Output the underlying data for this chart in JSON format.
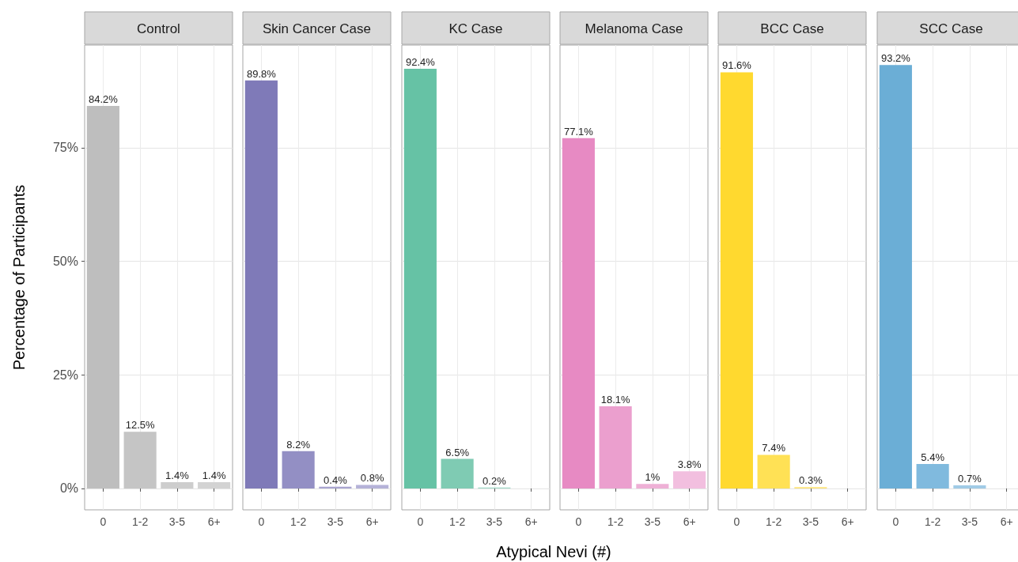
{
  "chart_data": [
    {
      "type": "bar",
      "title": "Control",
      "ylabel": "Percentage of Participants",
      "categories": [
        "0",
        "1-2",
        "3-5",
        "6+"
      ],
      "values": [
        84.2,
        12.5,
        1.4,
        1.4
      ],
      "colors": [
        "#bebebe",
        "#c5c5c5",
        "#cdcdcd",
        "#d3d3d3"
      ],
      "value_labels": [
        "84.2%",
        "12.5%",
        "1.4%",
        "1.4%"
      ],
      "ylim": [
        -4.7,
        97.6
      ],
      "yticks": [
        {
          "value": 0,
          "label": "0%"
        },
        {
          "value": 25,
          "label": "25%"
        },
        {
          "value": 50,
          "label": "50%"
        },
        {
          "value": 75,
          "label": "75%"
        }
      ],
      "grid": true
    },
    {
      "type": "bar",
      "title": "Skin Cancer Case",
      "categories": [
        "0",
        "1-2",
        "3-5",
        "6+"
      ],
      "values": [
        89.8,
        8.2,
        0.4,
        0.8
      ],
      "colors": [
        "#7f7ab8",
        "#938fc4",
        "#a9a5d0",
        "#b5b2d8"
      ],
      "value_labels": [
        "89.8%",
        "8.2%",
        "0.4%",
        "0.8%"
      ],
      "ylim": [
        -4.7,
        97.6
      ],
      "yticks": [
        0,
        25,
        50,
        75
      ],
      "grid": true,
      "tick_labels": "x"
    },
    {
      "type": "bar",
      "title": "KC Case",
      "xlabel": "Atypical Nevi (#)",
      "categories": [
        "0",
        "1-2",
        "3-5",
        "6+"
      ],
      "values": [
        92.4,
        6.5,
        0.2,
        null
      ],
      "colors": [
        "#66c2a5",
        "#7fcbb3",
        "#a3dac8",
        "#b8e3d5"
      ],
      "value_labels": [
        "92.4%",
        "6.5%",
        "0.2%",
        null
      ],
      "ylim": [
        -4.7,
        97.6
      ],
      "yticks": [
        0,
        25,
        50,
        75
      ],
      "grid": true,
      "tick_labels": "x"
    },
    {
      "type": "bar",
      "title": "Melanoma Case",
      "categories": [
        "0",
        "1-2",
        "3-5",
        "6+"
      ],
      "values": [
        77.1,
        18.1,
        1,
        3.8
      ],
      "colors": [
        "#e78ac3",
        "#eb9fce",
        "#eeb0d6",
        "#f2bfdf"
      ],
      "value_labels": [
        "77.1%",
        "18.1%",
        "1%",
        "3.8%"
      ],
      "ylim": [
        -4.7,
        97.6
      ],
      "yticks": [
        0,
        25,
        50,
        75
      ],
      "grid": true,
      "tick_labels": "x"
    },
    {
      "type": "bar",
      "title": "BCC Case",
      "categories": [
        "0",
        "1-2",
        "3-5",
        "6+"
      ],
      "values": [
        91.6,
        7.4,
        0.3,
        null
      ],
      "colors": [
        "#ffd92f",
        "#ffe155",
        "#ffe57a",
        "#ffeb9a"
      ],
      "value_labels": [
        "91.6%",
        "7.4%",
        "0.3%",
        null
      ],
      "ylim": [
        -4.7,
        97.6
      ],
      "yticks": [
        0,
        25,
        50,
        75
      ],
      "grid": true,
      "tick_labels": "x"
    },
    {
      "type": "bar",
      "title": "SCC Case",
      "categories": [
        "0",
        "1-2",
        "3-5",
        "6+"
      ],
      "values": [
        93.2,
        5.4,
        0.7,
        null
      ],
      "colors": [
        "#6baed6",
        "#80bade",
        "#a0cbe6",
        "#b5d6eb"
      ],
      "value_labels": [
        "93.2%",
        "5.4%",
        "0.7%",
        null
      ],
      "ylim": [
        -4.7,
        97.6
      ],
      "yticks": [
        0,
        25,
        50,
        75
      ],
      "grid": true,
      "tick_labels": "x"
    }
  ]
}
